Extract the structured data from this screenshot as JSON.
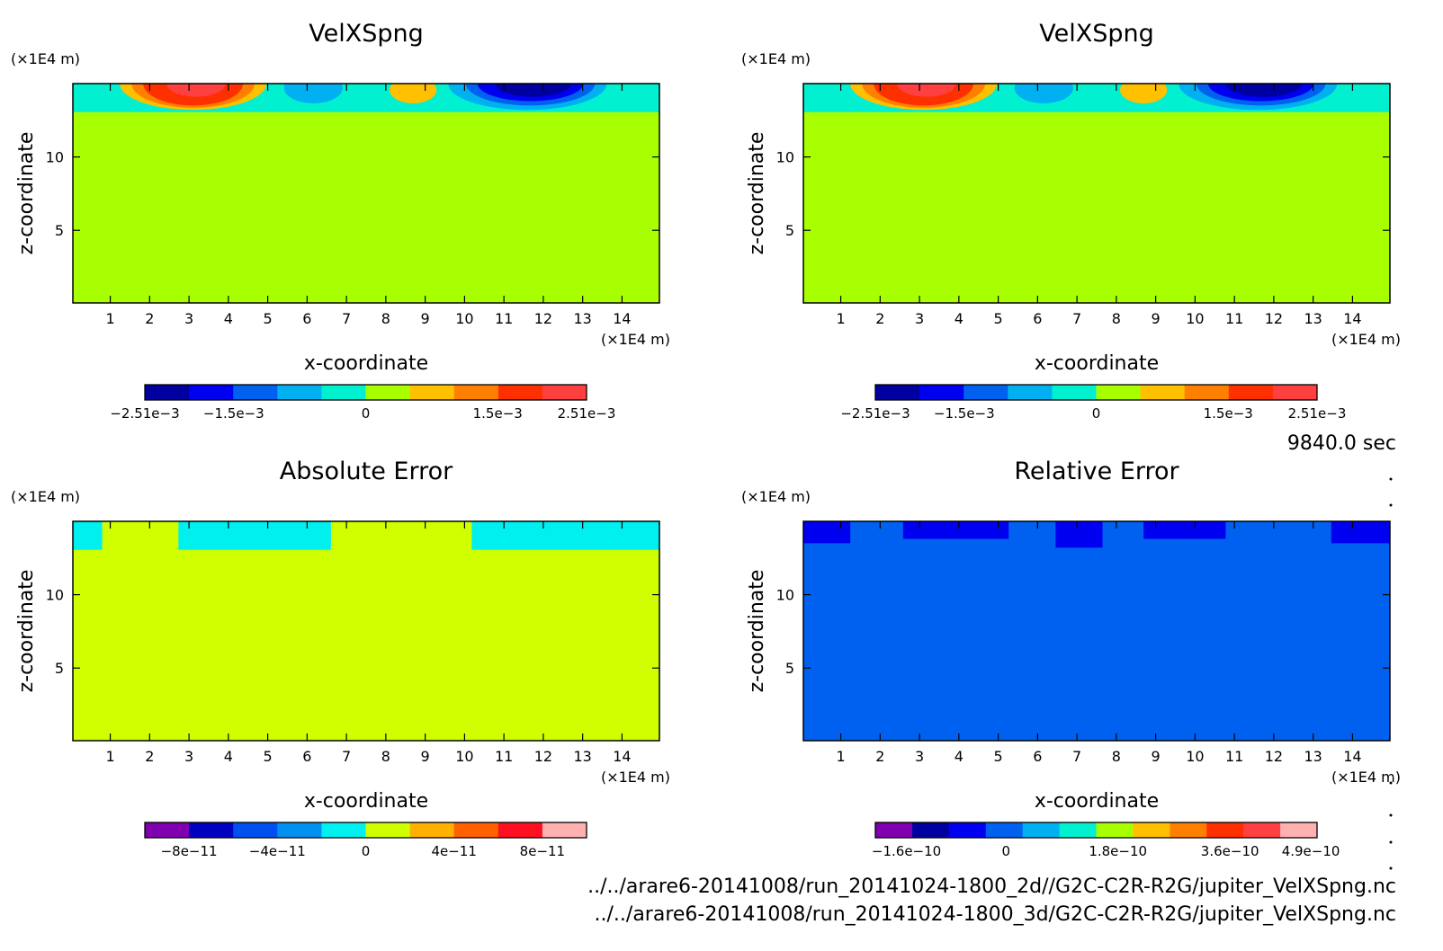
{
  "time_label": "9840.0 sec",
  "files": [
    "../../arare6-20141008/run_20141024-1800_2d//G2C-C2R-R2G/jupiter_VelXSpng.nc",
    "../../arare6-20141008/run_20141024-1800_3d/G2C-C2R-R2G/jupiter_VelXSpng.nc"
  ],
  "chart_data": [
    {
      "type": "heatmap",
      "title": "VelXSpng",
      "xlabel": "x-coordinate",
      "ylabel": "z-coordinate",
      "x_unit": "(×1E4 m)",
      "y_unit": "(×1E4 m)",
      "xlim": [
        0.05,
        14.95
      ],
      "ylim": [
        0.05,
        15
      ],
      "x_ticks": [
        "1",
        "2",
        "3",
        "4",
        "5",
        "6",
        "7",
        "8",
        "9",
        "10",
        "11",
        "12",
        "13",
        "14"
      ],
      "y_ticks": [
        "5",
        "10"
      ],
      "background_color": "#a8ff00",
      "colorbar": {
        "colors": [
          "#0000a0",
          "#0000f0",
          "#0060f0",
          "#00b0f0",
          "#00f0d0",
          "#a8ff00",
          "#ffc000",
          "#ff8000",
          "#ff3000",
          "#ff4040"
        ],
        "labels": [
          "−2.51e−3",
          "−1.5e−3",
          "0",
          "1.5e−3",
          "2.51e−3"
        ],
        "label_values": [
          -0.00251,
          -0.0015,
          0,
          0.0015,
          0.00251
        ],
        "range": [
          -0.00251,
          0.00251
        ]
      }
    },
    {
      "type": "heatmap",
      "title": "VelXSpng",
      "xlabel": "x-coordinate",
      "ylabel": "z-coordinate",
      "x_unit": "(×1E4 m)",
      "y_unit": "(×1E4 m)",
      "xlim": [
        0.05,
        14.95
      ],
      "ylim": [
        0.05,
        15
      ],
      "x_ticks": [
        "1",
        "2",
        "3",
        "4",
        "5",
        "6",
        "7",
        "8",
        "9",
        "10",
        "11",
        "12",
        "13",
        "14"
      ],
      "y_ticks": [
        "5",
        "10"
      ],
      "background_color": "#a8ff00",
      "colorbar": {
        "colors": [
          "#0000a0",
          "#0000f0",
          "#0060f0",
          "#00b0f0",
          "#00f0d0",
          "#a8ff00",
          "#ffc000",
          "#ff8000",
          "#ff3000",
          "#ff4040"
        ],
        "labels": [
          "−2.51e−3",
          "−1.5e−3",
          "0",
          "1.5e−3",
          "2.51e−3"
        ],
        "label_values": [
          -0.00251,
          -0.0015,
          0,
          0.0015,
          0.00251
        ],
        "range": [
          -0.00251,
          0.00251
        ]
      }
    },
    {
      "type": "heatmap",
      "title": "Absolute Error",
      "xlabel": "x-coordinate",
      "ylabel": "z-coordinate",
      "x_unit": "(×1E4 m)",
      "y_unit": "(×1E4 m)",
      "xlim": [
        0.05,
        14.95
      ],
      "ylim": [
        0.05,
        15
      ],
      "x_ticks": [
        "1",
        "2",
        "3",
        "4",
        "5",
        "6",
        "7",
        "8",
        "9",
        "10",
        "11",
        "12",
        "13",
        "14"
      ],
      "y_ticks": [
        "5",
        "10"
      ],
      "background_color": "#d0ff00",
      "colorbar": {
        "colors": [
          "#8000b0",
          "#0000c0",
          "#0050f0",
          "#0090f0",
          "#00f0f0",
          "#d0ff00",
          "#ffb000",
          "#ff6000",
          "#ff1020",
          "#ffb0b0"
        ],
        "labels": [
          "−8e−11",
          "−4e−11",
          "0",
          "4e−11",
          "8e−11"
        ],
        "label_values": [
          -8e-11,
          -4e-11,
          0,
          4e-11,
          8e-11
        ],
        "range": [
          -1e-10,
          1e-10
        ]
      }
    },
    {
      "type": "heatmap",
      "title": "Relative Error",
      "xlabel": "x-coordinate",
      "ylabel": "z-coordinate",
      "x_unit": "(×1E4 m)",
      "y_unit": "(×1E4 m)",
      "xlim": [
        0.05,
        14.95
      ],
      "ylim": [
        0.05,
        15
      ],
      "x_ticks": [
        "1",
        "2",
        "3",
        "4",
        "5",
        "6",
        "7",
        "8",
        "9",
        "10",
        "11",
        "12",
        "13",
        "14"
      ],
      "y_ticks": [
        "5",
        "10"
      ],
      "background_color": "#0060f0",
      "colorbar": {
        "colors": [
          "#8000b0",
          "#0000a0",
          "#0000f0",
          "#0060f0",
          "#00b0f0",
          "#00f0d0",
          "#a8ff00",
          "#ffc000",
          "#ff8000",
          "#ff3000",
          "#ff4040",
          "#ffb0b0"
        ],
        "labels": [
          "−1.6e−10",
          "0",
          "1.8e−10",
          "3.6e−10",
          "4.9e−10"
        ],
        "label_values": [
          -1.6e-10,
          0,
          1.8e-10,
          3.6e-10,
          4.9e-10
        ],
        "range": [
          -2.1e-10,
          5e-10
        ]
      }
    }
  ]
}
